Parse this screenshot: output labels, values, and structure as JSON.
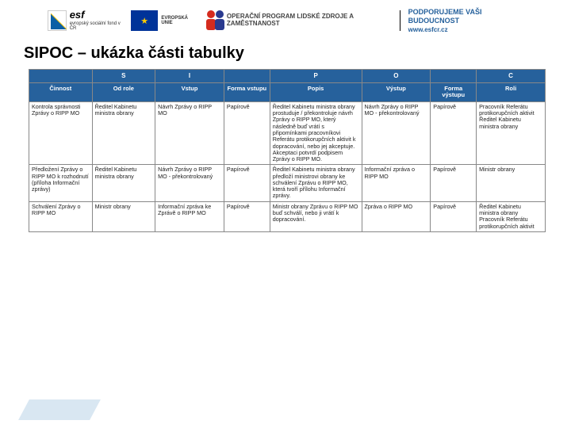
{
  "logos": {
    "esf": {
      "big": "esf",
      "small": "evropský\nsociální\nfond v ČR"
    },
    "eu": "EVROPSKÁ UNIE",
    "op": "OPERAČNÍ PROGRAM\nLIDSKÉ ZDROJE\nA ZAMĚSTNANOST",
    "support": "PODPORUJEME\nVAŠI BUDOUCNOST",
    "url": "www.esfcr.cz"
  },
  "title": "SIPOC – ukázka části tabulky",
  "table": {
    "letters": [
      "",
      "S",
      "I",
      "",
      "P",
      "O",
      "",
      "C"
    ],
    "headers": [
      "Činnost",
      "Od role",
      "Vstup",
      "Forma vstupu",
      "Popis",
      "Výstup",
      "Forma výstupu",
      "Roli"
    ],
    "rows": [
      {
        "cinnost": "Kontrola správnosti Zprávy o RIPP MO",
        "odrole": "Ředitel Kabinetu ministra obrany",
        "vstup": "Návrh Zprávy o RIPP MO",
        "forma_v": "Papírově",
        "popis": "Ředitel Kabinetu ministra obrany prostuduje / překontroluje návrh Zprávy o RIPP MO, který následně buď vrátí s připomínkami pracovníkovi Referátu protikorupčních aktivit k dopracování, nebo jej akceptuje. Akceptaci potvrdí podpisem Zprávy o RIPP MO.",
        "vystup": "Návrh Zprávy o RIPP MO - překontrolovaný",
        "forma_o": "Papírově",
        "roli": "Pracovník Referátu protikorupčních aktivit\nŘeditel Kabinetu ministra obrany"
      },
      {
        "cinnost": "Předložení Zprávy o RIPP MO k rozhodnutí (příloha Informační zprávy)",
        "odrole": "Ředitel Kabinetu ministra obrany",
        "vstup": "Návrh Zprávy o RIPP MO - překontrolovaný",
        "forma_v": "Papírově",
        "popis": "Ředitel Kabinetu ministra obrany předloží ministrovi obrany ke schválení Zprávu o RIPP MO, která tvoří přílohu Informační zprávy.",
        "vystup": "Informační zpráva o RIPP MO",
        "forma_o": "Papírově",
        "roli": "Ministr obrany"
      },
      {
        "cinnost": "Schválení Zprávy o RIPP MO",
        "odrole": "Ministr obrany",
        "vstup": "Informační zpráva ke Zprávě o RIPP MO",
        "forma_v": "Papírově",
        "popis": "Ministr obrany Zprávu o RIPP MO buď schválí, nebo ji vrátí k dopracování.",
        "vystup": "Zpráva o RIPP MO",
        "forma_o": "Papírově",
        "roli": "Ředitel Kabinetu ministra obrany\nPracovník Referátu protikorupčních aktivit"
      }
    ]
  }
}
